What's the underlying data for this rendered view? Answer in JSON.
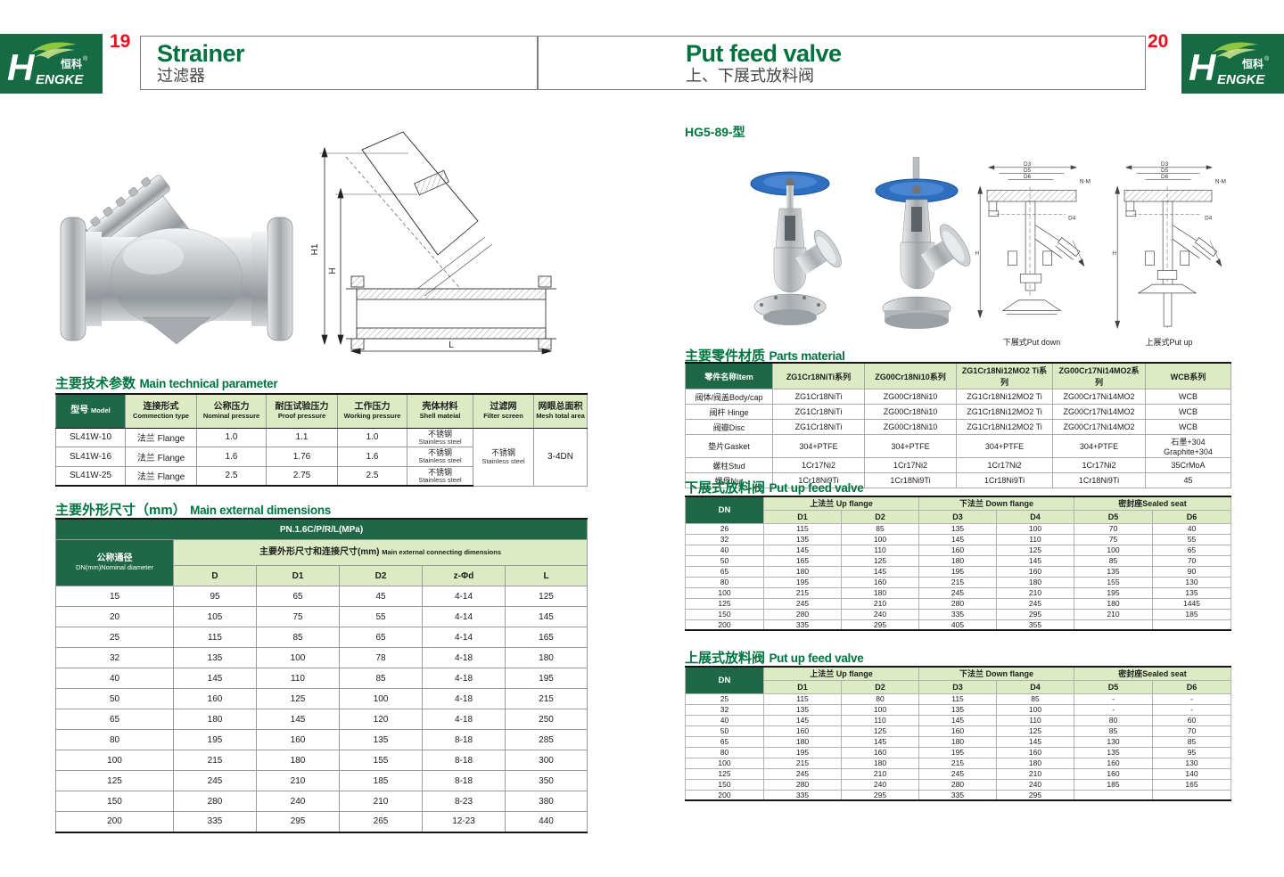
{
  "page": {
    "left_page_number": "19",
    "right_page_number": "20",
    "logo": {
      "brand_h": "H",
      "brand_rest": "ENGKE",
      "brand_cn": "恒科",
      "reg_mark": "®"
    },
    "left_header": {
      "title_en": "Strainer",
      "title_cn": "过滤器"
    },
    "right_header": {
      "title_en": "Put feed valve",
      "title_cn": "上、下展式放料阀"
    },
    "colors": {
      "dark_green": "#1e6848",
      "light_green": "#dcebc3",
      "title_green": "#007440",
      "page_num_red": "#e8101e",
      "handwheel_blue": "#2e6fc0"
    }
  },
  "left": {
    "drawing_labels": {
      "h1": "H1",
      "h": "H",
      "l": "L"
    },
    "tech_section": {
      "cn": "主要技术参数",
      "en": "Main technical parameter"
    },
    "tech_table": {
      "headers": [
        {
          "cn": "型号",
          "en": "Model"
        },
        {
          "cn": "连接形式",
          "en": "Commection type"
        },
        {
          "cn": "公称压力",
          "en": "Nominal pressure"
        },
        {
          "cn": "耐压试验压力",
          "en": "Proof pressure"
        },
        {
          "cn": "工作压力",
          "en": "Working pressure"
        },
        {
          "cn": "壳体材料",
          "en": "Shell mateial"
        },
        {
          "cn": "过滤网",
          "en": "Filter screen"
        },
        {
          "cn": "网眼总面积",
          "en": "Mesh total area"
        }
      ],
      "rows": [
        [
          "SL41W-10",
          "法兰 Flange",
          "1.0",
          "1.1",
          "1.0"
        ],
        [
          "SL41W-16",
          "法兰 Flange",
          "1.6",
          "1.76",
          "1.6"
        ],
        [
          "SL41W-25",
          "法兰 Flange",
          "2.5",
          "2.75",
          "2.5"
        ]
      ],
      "shell": {
        "cn": "不锈钢",
        "en": "Stainless steel"
      },
      "filter": {
        "cn": "不锈钢",
        "en": "Stainless steel"
      },
      "mesh": "3-4DN"
    },
    "dim_section": {
      "cn": "主要外形尺寸（mm）",
      "en": "Main external dimensions"
    },
    "dim_table": {
      "pn_row": "PN.1.6C/P/R/L(MPa)",
      "dn_header": {
        "cn": "公称通径",
        "en": "DN(mm)Nominal diameter"
      },
      "group_header": {
        "cn": "主要外形尺寸和连接尺寸(mm)",
        "en": "Main external connecting dimensions"
      },
      "columns": [
        "D",
        "D1",
        "D2",
        "z-Φd",
        "L"
      ],
      "rows": [
        [
          "15",
          "95",
          "65",
          "45",
          "4-14",
          "125"
        ],
        [
          "20",
          "105",
          "75",
          "55",
          "4-14",
          "145"
        ],
        [
          "25",
          "115",
          "85",
          "65",
          "4-14",
          "165"
        ],
        [
          "32",
          "135",
          "100",
          "78",
          "4-18",
          "180"
        ],
        [
          "40",
          "145",
          "110",
          "85",
          "4-18",
          "195"
        ],
        [
          "50",
          "160",
          "125",
          "100",
          "4-18",
          "215"
        ],
        [
          "65",
          "180",
          "145",
          "120",
          "4-18",
          "250"
        ],
        [
          "80",
          "195",
          "160",
          "135",
          "8-18",
          "285"
        ],
        [
          "100",
          "215",
          "180",
          "155",
          "8-18",
          "300"
        ],
        [
          "125",
          "245",
          "210",
          "185",
          "8-18",
          "350"
        ],
        [
          "150",
          "280",
          "240",
          "210",
          "8-23",
          "380"
        ],
        [
          "200",
          "335",
          "295",
          "265",
          "12-23",
          "440"
        ]
      ]
    }
  },
  "right": {
    "model_code": "HG5-89-型",
    "drawings": {
      "labels": {
        "d3": "D3",
        "d5": "D5",
        "d6": "D6",
        "nm": "N-M",
        "d4": "D4",
        "h": "H"
      },
      "captions": [
        "下展式Put down",
        "上展式Put up"
      ]
    },
    "parts_section": {
      "cn": "主要零件材质",
      "en": "Parts material"
    },
    "parts_table": {
      "item_header": "零件名称Item",
      "series_headers": [
        "ZG1Cr18NiTi系列",
        "ZG00Cr18Ni10系列",
        "ZG1Cr18Ni12MO2 Ti系列",
        "ZG00Cr17Ni14MO2系列",
        "WCB系列"
      ],
      "rows": [
        {
          "item": "阀体/阀盖Body/cap",
          "values": [
            "ZG1Cr18NiTi",
            "ZG00Cr18Ni10",
            "ZG1Cr18Ni12MO2 Ti",
            "ZG00Cr17Ni14MO2",
            "WCB"
          ]
        },
        {
          "item": "阀杆 Hinge",
          "values": [
            "ZG1Cr18NiTi",
            "ZG00Cr18Ni10",
            "ZG1Cr18Ni12MO2 Ti",
            "ZG00Cr17Ni14MO2",
            "WCB"
          ]
        },
        {
          "item": "阀瓣Disc",
          "values": [
            "ZG1Cr18NiTi",
            "ZG00Cr18Ni10",
            "ZG1Cr18Ni12MO2 Ti",
            "ZG00Cr17Ni14MO2",
            "WCB"
          ]
        },
        {
          "item": "垫片Gasket",
          "values": [
            "304+PTFE",
            "304+PTFE",
            "304+PTFE",
            "304+PTFE",
            "石墨+304 Graphite+304"
          ]
        },
        {
          "item": "螺柱Stud",
          "values": [
            "1Cr17Ni2",
            "1Cr17Ni2",
            "1Cr17Ni2",
            "1Cr17Ni2",
            "35CrMoA"
          ]
        },
        {
          "item": "螺母Nut",
          "values": [
            "1Cr18Ni9Ti",
            "1Cr18Ni9Ti",
            "1Cr18Ni9Ti",
            "1Cr18Ni9Ti",
            "45"
          ]
        }
      ]
    },
    "down_section": {
      "cn": "下展式放料阀",
      "en": "Put up feed valve"
    },
    "up_section": {
      "cn": "上展式放料阀",
      "en": "Put up feed valve"
    },
    "flange_headers": {
      "dn": "DN",
      "up_flange": "上法兰 Up flange",
      "down_flange": "下法兰 Down flange",
      "sealed_seat": "密封座Sealed seat",
      "columns": [
        "D1",
        "D2",
        "D3",
        "D4",
        "D5",
        "D6"
      ]
    },
    "down_table_rows": [
      [
        "26",
        "115",
        "85",
        "135",
        "100",
        "70",
        "40"
      ],
      [
        "32",
        "135",
        "100",
        "145",
        "110",
        "75",
        "55"
      ],
      [
        "40",
        "145",
        "110",
        "160",
        "125",
        "100",
        "65"
      ],
      [
        "50",
        "165",
        "125",
        "180",
        "145",
        "85",
        "70"
      ],
      [
        "65",
        "180",
        "145",
        "195",
        "160",
        "135",
        "90"
      ],
      [
        "80",
        "195",
        "160",
        "215",
        "180",
        "155",
        "130"
      ],
      [
        "100",
        "215",
        "180",
        "245",
        "210",
        "195",
        "135"
      ],
      [
        "125",
        "245",
        "210",
        "280",
        "245",
        "180",
        "1445"
      ],
      [
        "150",
        "280",
        "240",
        "335",
        "295",
        "210",
        "185"
      ],
      [
        "200",
        "335",
        "295",
        "405",
        "355",
        "",
        ""
      ]
    ],
    "up_table_rows": [
      [
        "25",
        "115",
        "80",
        "115",
        "85",
        "-",
        "-"
      ],
      [
        "32",
        "135",
        "100",
        "135",
        "100",
        "-",
        "-"
      ],
      [
        "40",
        "145",
        "110",
        "145",
        "110",
        "80",
        "60"
      ],
      [
        "50",
        "160",
        "125",
        "160",
        "125",
        "85",
        "70"
      ],
      [
        "65",
        "180",
        "145",
        "180",
        "145",
        "130",
        "85"
      ],
      [
        "80",
        "195",
        "160",
        "195",
        "160",
        "135",
        "95"
      ],
      [
        "100",
        "215",
        "180",
        "215",
        "180",
        "160",
        "130"
      ],
      [
        "125",
        "245",
        "210",
        "245",
        "210",
        "160",
        "140"
      ],
      [
        "150",
        "280",
        "240",
        "280",
        "240",
        "185",
        "165"
      ],
      [
        "200",
        "335",
        "295",
        "335",
        "295",
        "",
        ""
      ]
    ]
  }
}
